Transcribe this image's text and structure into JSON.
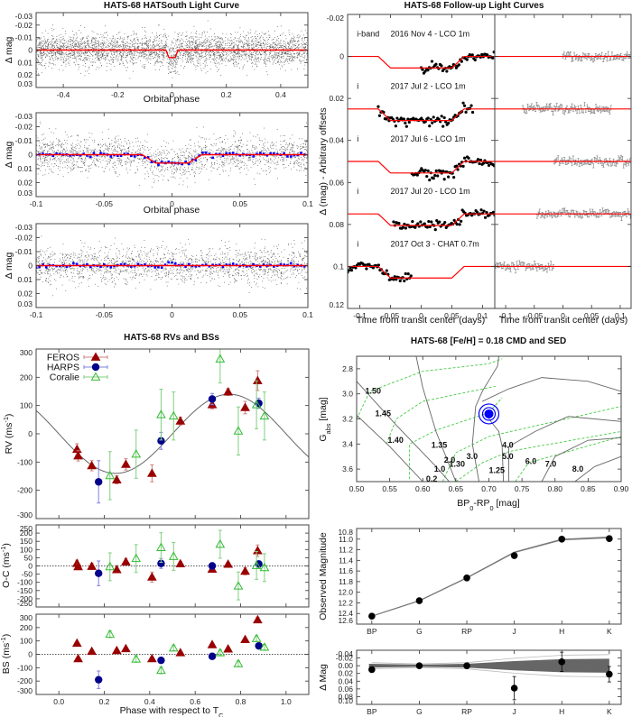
{
  "chart_data": [
    {
      "id": "hatsouth_full",
      "type": "scatter",
      "title": "HATS-68 HATSouth Light Curve",
      "xlabel": "Orbital phase",
      "ylabel": "Δ mag",
      "xlim": [
        -0.5,
        0.5
      ],
      "ylim": [
        -0.03,
        0.03
      ],
      "y_inverted": true,
      "xticks": [
        "-0.4",
        "-0.2",
        "0",
        "0.2",
        "0.4"
      ],
      "yticks": [
        "-0.03",
        "-0.02",
        "-0.01",
        "0",
        "0.01",
        "0.02",
        "0.03"
      ],
      "series": [
        {
          "kind": "raw photometry",
          "color": "#555555"
        },
        {
          "kind": "transit model",
          "color": "#ff0000",
          "depth": 0.006,
          "phase_center": 0.0
        }
      ]
    },
    {
      "id": "hatsouth_zoom_transit",
      "type": "scatter",
      "xlabel": "Orbital phase",
      "ylabel": "Δ mag",
      "xlim": [
        -0.1,
        0.1
      ],
      "ylim": [
        -0.03,
        0.03
      ],
      "y_inverted": true,
      "xticks": [
        "-0.1",
        "-0.05",
        "0",
        "0.05",
        "0.1"
      ],
      "yticks": [
        "-0.03",
        "-0.02",
        "-0.01",
        "0",
        "0.01",
        "0.02",
        "0.03"
      ],
      "series": [
        {
          "kind": "raw photometry",
          "color": "#555555"
        },
        {
          "kind": "binned",
          "color": "#0000ff"
        },
        {
          "kind": "transit model",
          "color": "#ff0000",
          "depth": 0.006
        }
      ]
    },
    {
      "id": "hatsouth_zoom_secondary",
      "type": "scatter",
      "xlabel": "Orbital phase",
      "ylabel": "Δ mag",
      "xlim": [
        -0.1,
        0.1
      ],
      "ylim": [
        -0.03,
        0.03
      ],
      "y_inverted": true,
      "xticks": [
        "-0.1",
        "-0.05",
        "0",
        "0.05",
        "0.1"
      ],
      "yticks": [
        "-0.03",
        "-0.02",
        "-0.01",
        "0",
        "0.01",
        "0.02",
        "0.03"
      ],
      "series": [
        {
          "kind": "raw photometry",
          "color": "#555555"
        },
        {
          "kind": "binned",
          "color": "#0000ff"
        },
        {
          "kind": "model",
          "color": "#ff0000"
        }
      ]
    },
    {
      "id": "followup",
      "type": "scatter",
      "title": "HATS-68 Follow-up Light Curves",
      "xlabel": "Time from transit center (days)",
      "xlabel_right": "Time from transit center (days)",
      "ylabel": "Δ (mag) - Arbitrary offsets",
      "xlim": [
        -0.12,
        0.12
      ],
      "ylim": [
        -0.02,
        0.12
      ],
      "y_inverted": true,
      "xticks": [
        "-0.1",
        "-0.05",
        "0",
        "0.05",
        "0.1"
      ],
      "yticks": [
        "-0.02",
        "0",
        "0.02",
        "0.04",
        "0.06",
        "0.08",
        "0.1",
        "0.12"
      ],
      "transit_depth": 0.0055,
      "datasets": [
        {
          "filter": "i-band",
          "label": "2016 Nov 4 - LCO 1m",
          "offset": 0.0,
          "t_range": [
            0.0,
            0.12
          ]
        },
        {
          "filter": "i",
          "label": "2017 Jul 2 - LCO 1m",
          "offset": 0.025,
          "t_range": [
            -0.07,
            0.085
          ]
        },
        {
          "filter": "i",
          "label": "2017 Jul 6 - LCO 1m",
          "offset": 0.05,
          "t_range": [
            -0.015,
            0.12
          ]
        },
        {
          "filter": "i",
          "label": "2017 Jul 20 - LCO 1m",
          "offset": 0.075,
          "t_range": [
            -0.045,
            0.12
          ]
        },
        {
          "filter": "i",
          "label": "2017 Oct 3 - CHAT 0.7m",
          "offset": 0.1,
          "t_range": [
            -0.12,
            -0.015
          ]
        }
      ],
      "colors": {
        "data": "#000000",
        "model": "#ff0000",
        "residuals": "#777777"
      }
    },
    {
      "id": "rv",
      "type": "scatter",
      "title": "HATS-68 RVs and BSs",
      "ylabel": "RV (ms^{-1})",
      "xlim": [
        -0.1,
        1.1
      ],
      "ylim": [
        -300,
        300
      ],
      "yticks": [
        "-300",
        "-200",
        "-100",
        "0",
        "100",
        "200",
        "300"
      ],
      "model": {
        "kind": "sinusoid",
        "K": 140
      },
      "legend": {
        "position": "top-left",
        "entries": [
          "FEROS",
          "HARPS",
          "Coralie"
        ]
      },
      "series": [
        {
          "name": "FEROS",
          "color": "#990000",
          "marker": "filled-triangle",
          "phase": [
            0.08,
            0.085,
            0.145,
            0.255,
            0.295,
            0.41,
            0.535,
            0.675,
            0.745,
            0.82,
            0.875
          ],
          "values": [
            -55,
            -78,
            -113,
            -163,
            -108,
            -140,
            45,
            103,
            148,
            93,
            188
          ],
          "errors": [
            20,
            18,
            18,
            14,
            20,
            30,
            14,
            15,
            12,
            22,
            35
          ]
        },
        {
          "name": "HARPS",
          "color": "#00008b",
          "marker": "filled-circle",
          "phase": [
            0.175,
            0.45,
            0.675,
            0.88
          ],
          "values": [
            -170,
            -25,
            123,
            108
          ],
          "errors": [
            75,
            30,
            20,
            18
          ]
        },
        {
          "name": "Coralie",
          "color": "#33bb33",
          "marker": "open-triangle",
          "phase": [
            0.225,
            0.34,
            0.45,
            0.505,
            0.71,
            0.79,
            0.87,
            0.905
          ],
          "values": [
            -148,
            -72,
            68,
            63,
            265,
            10,
            103,
            63
          ],
          "errors": [
            85,
            85,
            90,
            85,
            85,
            85,
            85,
            85
          ]
        }
      ]
    },
    {
      "id": "oc",
      "type": "scatter",
      "ylabel": "O-C (ms^{-1})",
      "xlim": [
        -0.1,
        1.1
      ],
      "ylim": [
        -250,
        250
      ],
      "yticks": [
        "-250",
        "-200",
        "-150",
        "-100",
        "-50",
        "0",
        "50",
        "100",
        "150",
        "200",
        "250"
      ],
      "series": [
        {
          "name": "FEROS",
          "values": [
            15,
            -5,
            -3,
            -23,
            25,
            -68,
            13,
            -20,
            10,
            -32,
            93
          ]
        },
        {
          "name": "HARPS",
          "values": [
            -45,
            15,
            0,
            12
          ]
        },
        {
          "name": "Coralie",
          "values": [
            -5,
            45,
            112,
            58,
            132,
            -122,
            3,
            -10
          ]
        }
      ]
    },
    {
      "id": "bs",
      "type": "scatter",
      "ylabel": "BS (ms^{-1})",
      "xlabel": "Phase with respect to T_{C}",
      "xlim": [
        -0.1,
        1.1
      ],
      "ylim": [
        -300,
        300
      ],
      "xticks": [
        "0.0",
        "0.2",
        "0.4",
        "0.6",
        "0.8",
        "1.0"
      ],
      "yticks": [
        "-300",
        "-200",
        "-100",
        "0",
        "100",
        "200",
        "300"
      ],
      "series": [
        {
          "name": "FEROS",
          "values": [
            83,
            -33,
            22,
            28,
            42,
            -33,
            12,
            72,
            40,
            110,
            258
          ],
          "errors": [
            10,
            10,
            10,
            10,
            10,
            10,
            10,
            10,
            10,
            10,
            18
          ]
        },
        {
          "name": "HARPS",
          "values": [
            -190,
            -45,
            -15,
            63
          ],
          "errors": [
            65,
            15,
            10,
            10
          ]
        },
        {
          "name": "Coralie",
          "values": [
            150,
            -35,
            -120,
            47,
            12,
            -70,
            118,
            53
          ],
          "errors": [
            25,
            25,
            25,
            20,
            20,
            20,
            20,
            20
          ]
        }
      ]
    },
    {
      "id": "cmd",
      "type": "line",
      "title": "HATS-68 [Fe/H] = 0.18 CMD and SED",
      "xlabel": "BP_{0}-RP_{0} [mag]",
      "ylabel": "G_{abs} [mag]",
      "xlim": [
        0.5,
        0.9
      ],
      "ylim": [
        2.7,
        3.7
      ],
      "y_inverted": true,
      "xticks": [
        "0.50",
        "0.55",
        "0.60",
        "0.65",
        "0.70",
        "0.75",
        "0.80",
        "0.85",
        "0.90"
      ],
      "yticks": [
        "2.8",
        "3.0",
        "3.2",
        "3.4",
        "3.6"
      ],
      "star": {
        "bp_rp": 0.7,
        "g_abs": 3.16,
        "color": "#0000ff"
      },
      "isochrones": [
        {
          "age": "0.2",
          "points": [
            [
              0.5,
              2.9
            ],
            [
              0.56,
              3.25
            ],
            [
              0.62,
              3.58
            ],
            [
              0.64,
              3.7
            ]
          ]
        },
        {
          "age": "1.0",
          "points": [
            [
              0.5,
              3.17
            ],
            [
              0.55,
              3.42
            ],
            [
              0.6,
              3.7
            ]
          ]
        },
        {
          "age": "2.0",
          "points": [
            [
              0.59,
              2.7
            ],
            [
              0.6,
              2.95
            ],
            [
              0.62,
              3.3
            ],
            [
              0.65,
              3.7
            ]
          ]
        },
        {
          "age": "3.0",
          "points": [
            [
              0.715,
              2.7
            ],
            [
              0.713,
              2.78
            ],
            [
              0.69,
              2.98
            ],
            [
              0.68,
              3.1
            ],
            [
              0.675,
              3.4
            ],
            [
              0.685,
              3.7
            ]
          ]
        },
        {
          "age": "4.0",
          "points": [
            [
              0.69,
              3.06
            ],
            [
              0.73,
              2.96
            ],
            [
              0.78,
              2.87
            ],
            [
              0.85,
              2.9
            ],
            [
              0.9,
              2.98
            ]
          ]
        },
        {
          "age": "5.0",
          "points": [
            [
              0.7,
              3.2
            ],
            [
              0.715,
              3.3
            ],
            [
              0.72,
              3.42
            ],
            [
              0.722,
              3.7
            ]
          ]
        },
        {
          "age": "6.0",
          "points": [
            [
              0.73,
              3.7
            ],
            [
              0.73,
              3.42
            ],
            [
              0.77,
              3.3
            ],
            [
              0.82,
              3.18
            ],
            [
              0.9,
              3.22
            ]
          ]
        },
        {
          "age": "7.0",
          "points": [
            [
              0.78,
              3.7
            ],
            [
              0.8,
              3.5
            ],
            [
              0.85,
              3.37
            ],
            [
              0.9,
              3.35
            ]
          ]
        },
        {
          "age": "8.0",
          "points": [
            [
              0.83,
              3.7
            ],
            [
              0.86,
              3.58
            ],
            [
              0.9,
              3.5
            ]
          ]
        }
      ],
      "mass_tracks": [
        {
          "mass": "1.50",
          "points": [
            [
              0.5,
              3.2
            ],
            [
              0.52,
              2.98
            ],
            [
              0.6,
              2.82
            ],
            [
              0.7,
              2.76
            ],
            [
              0.72,
              2.72
            ]
          ]
        },
        {
          "mass": "1.45",
          "points": [
            [
              0.545,
              3.4
            ],
            [
              0.56,
              3.2
            ],
            [
              0.6,
              3.06
            ],
            [
              0.71,
              2.94
            ]
          ]
        },
        {
          "mass": "1.40",
          "points": [
            [
              0.58,
              3.68
            ],
            [
              0.58,
              3.4
            ],
            [
              0.62,
              3.29
            ],
            [
              0.7,
              3.15
            ],
            [
              0.72,
              3.03
            ]
          ]
        },
        {
          "mass": "1.35",
          "points": [
            [
              0.63,
              3.7
            ],
            [
              0.65,
              3.47
            ],
            [
              0.7,
              3.34
            ],
            [
              0.9,
              3.1
            ]
          ]
        },
        {
          "mass": "1.30",
          "points": [
            [
              0.65,
              3.7
            ],
            [
              0.69,
              3.55
            ],
            [
              0.73,
              3.46
            ],
            [
              0.9,
              3.3
            ]
          ]
        },
        {
          "mass": "1.25",
          "points": [
            [
              0.74,
              3.7
            ],
            [
              0.76,
              3.55
            ],
            [
              0.9,
              3.34
            ]
          ]
        }
      ],
      "colors": {
        "isochrone": "#666666",
        "mass_track": "#44cc44",
        "mass_label": "#22aa22"
      }
    },
    {
      "id": "sed",
      "type": "line",
      "ylabel": "Observed Magnitude",
      "categories": [
        "BP",
        "G",
        "RP",
        "J",
        "H",
        "K"
      ],
      "ylim": [
        10.8,
        12.6
      ],
      "y_inverted": true,
      "yticks": [
        "10.8",
        "11.0",
        "11.2",
        "11.4",
        "11.6",
        "11.8",
        "12.0",
        "12.2",
        "12.4",
        "12.6"
      ],
      "observed": [
        12.45,
        12.16,
        11.73,
        11.31,
        11.0,
        10.99
      ],
      "model": [
        12.45,
        12.16,
        11.73,
        11.25,
        11.01,
        10.97
      ]
    },
    {
      "id": "sed_residuals",
      "type": "scatter",
      "ylabel": "Δ Mag",
      "categories": [
        "BP",
        "G",
        "RP",
        "J",
        "H",
        "K"
      ],
      "ylim": [
        -0.04,
        0.1
      ],
      "y_inverted": true,
      "yticks": [
        "-0.04",
        "-0.02",
        "0.00",
        "0.02",
        "0.04",
        "0.06",
        "0.08",
        "0.10"
      ],
      "values": [
        0.01,
        0.0,
        0.0,
        0.058,
        -0.01,
        0.022
      ],
      "errors": [
        0.003,
        0.002,
        0.002,
        0.03,
        0.025,
        0.02
      ],
      "model_band_halfwidth": [
        0.005,
        0.003,
        0.005,
        0.012,
        0.017,
        0.018
      ]
    }
  ]
}
